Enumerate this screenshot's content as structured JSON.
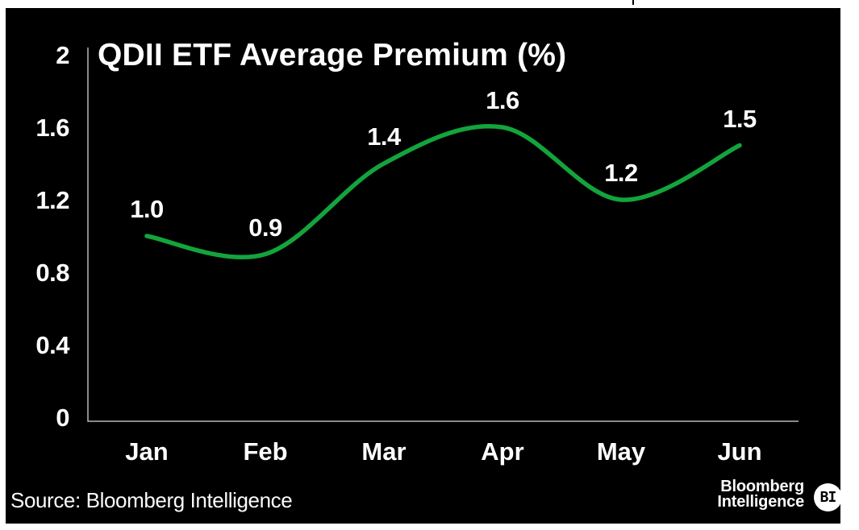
{
  "chart_data": {
    "type": "line",
    "title": "QDII ETF Average Premium (%)",
    "categories": [
      "Jan",
      "Feb",
      "Mar",
      "Apr",
      "May",
      "Jun"
    ],
    "values": [
      1.0,
      0.9,
      1.4,
      1.6,
      1.2,
      1.5
    ],
    "value_labels": [
      "1.0",
      "0.9",
      "1.4",
      "1.6",
      "1.2",
      "1.5"
    ],
    "y_tick_labels": [
      "2",
      "1.6",
      "1.2",
      "0.8",
      "0.4",
      "0"
    ],
    "y_tick_values": [
      2,
      1.6,
      1.2,
      0.8,
      0.4,
      0
    ],
    "ylim": [
      0,
      2
    ],
    "xlabel": "",
    "ylabel": "",
    "grid": false,
    "legend": false,
    "series_name": "QDII ETF Average Premium",
    "line_color": "#13a43c",
    "background_color": "#000000",
    "text_color": "#ffffff",
    "axis_color": "#b7b7b7"
  },
  "footer": {
    "source_text": "Source: Bloomberg Intelligence",
    "logo_line1": "Bloomberg",
    "logo_line2": "Intelligence",
    "logo_badge": "BI"
  }
}
